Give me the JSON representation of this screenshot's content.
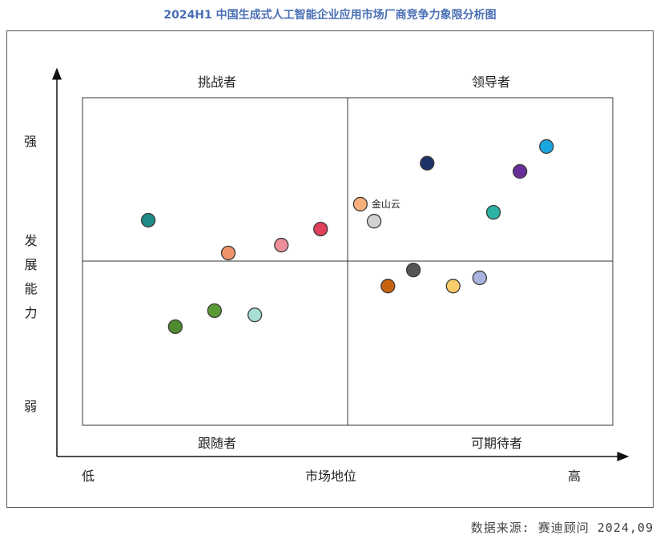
{
  "chart_data": {
    "type": "scatter",
    "title": "2024H1 中国生成式人工智能企业应用市场厂商竞争力象限分析图",
    "xlabel": "市场地位",
    "ylabel": "发展能力",
    "x_low": "低",
    "x_high": "高",
    "y_high": "强",
    "y_low": "弱",
    "xlim": [
      0,
      100
    ],
    "ylim": [
      0,
      100
    ],
    "quadrants": {
      "top_left": "挑战者",
      "top_right": "领导者",
      "bottom_left": "跟随者",
      "bottom_right": "可期待者"
    },
    "points": [
      {
        "x": 12.4,
        "y": 62.6,
        "color": "#1f8a85",
        "label": ""
      },
      {
        "x": 27.5,
        "y": 52.6,
        "color": "#f0956a",
        "label": ""
      },
      {
        "x": 37.5,
        "y": 55.0,
        "color": "#ec8e9a",
        "label": ""
      },
      {
        "x": 44.9,
        "y": 59.9,
        "color": "#e0415a",
        "label": ""
      },
      {
        "x": 17.5,
        "y": 30.1,
        "color": "#4f8a2e",
        "label": ""
      },
      {
        "x": 24.9,
        "y": 35.0,
        "color": "#5c9a35",
        "label": ""
      },
      {
        "x": 32.5,
        "y": 33.7,
        "color": "#a8ddd3",
        "label": ""
      },
      {
        "x": 52.4,
        "y": 67.5,
        "color": "#f7b07c",
        "label": "金山云"
      },
      {
        "x": 55.0,
        "y": 62.3,
        "color": "#d2d2d2",
        "label": ""
      },
      {
        "x": 65.0,
        "y": 80.0,
        "color": "#1d3468",
        "label": ""
      },
      {
        "x": 87.5,
        "y": 85.1,
        "color": "#1aa6e0",
        "label": ""
      },
      {
        "x": 82.5,
        "y": 77.5,
        "color": "#6a2e9a",
        "label": ""
      },
      {
        "x": 77.5,
        "y": 65.0,
        "color": "#2cb3a5",
        "label": ""
      },
      {
        "x": 62.4,
        "y": 47.4,
        "color": "#555555",
        "label": ""
      },
      {
        "x": 57.6,
        "y": 42.5,
        "color": "#c9620f",
        "label": ""
      },
      {
        "x": 69.9,
        "y": 42.5,
        "color": "#f9cd6a",
        "label": ""
      },
      {
        "x": 74.9,
        "y": 45.0,
        "color": "#aab4e0",
        "label": ""
      }
    ]
  },
  "source": "数据来源: 赛迪顾问  2024,09"
}
